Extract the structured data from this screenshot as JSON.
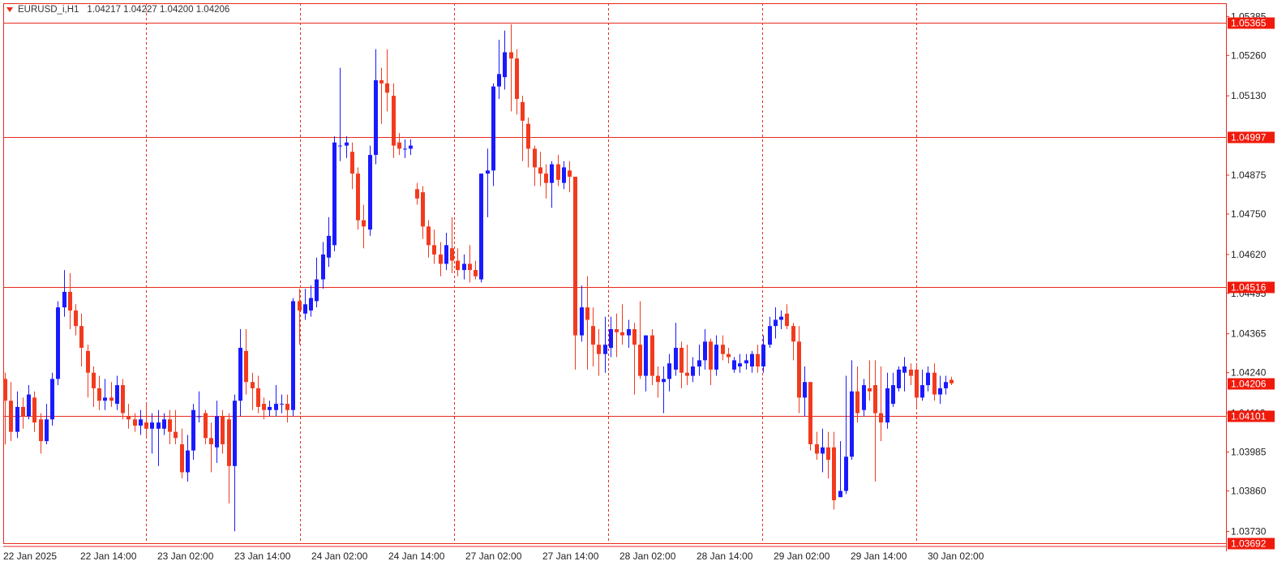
{
  "header": {
    "symbol": "EURUSD_i,H1",
    "ohlc": "1.04217 1.04227 1.04200 1.04206"
  },
  "colors": {
    "bull": "#1a1aff",
    "bear": "#f23a1e",
    "hline": "#e8291c",
    "grid": "#e8291c",
    "axis": "#e8291c",
    "label_bg": "#f01a0c",
    "label_text": "#ffffff",
    "highlight_wick": "#22dd22"
  },
  "chart_data": {
    "type": "candlestick",
    "symbol": "EURUSD_i",
    "timeframe": "H1",
    "ylim": [
      1.03692,
      1.05365
    ],
    "y_ticks": [
      "1.05385",
      "1.05260",
      "1.05130",
      "1.04875",
      "1.04750",
      "1.04620",
      "1.04495",
      "1.04365",
      "1.04240",
      "1.04110",
      "1.03985",
      "1.03860",
      "1.03730"
    ],
    "x_ticks": [
      "22 Jan 2025",
      "22 Jan 14:00",
      "23 Jan 02:00",
      "23 Jan 14:00",
      "24 Jan 02:00",
      "24 Jan 14:00",
      "27 Jan 02:00",
      "27 Jan 14:00",
      "28 Jan 02:00",
      "28 Jan 14:00",
      "29 Jan 02:00",
      "29 Jan 14:00",
      "30 Jan 02:00"
    ],
    "horizontal_lines": [
      {
        "price": 1.05365,
        "label": "1.05365"
      },
      {
        "price": 1.04997,
        "label": "1.04997"
      },
      {
        "price": 1.04516,
        "label": "1.04516"
      },
      {
        "price": 1.04101,
        "label": "1.04101"
      },
      {
        "price": 1.03692,
        "label": "1.03692"
      }
    ],
    "current_price": {
      "price": 1.04206,
      "label": "1.04206"
    },
    "grid": "vertical-dashed",
    "candles": [
      [
        1.0422,
        1.0415,
        1.0424,
        1.0401
      ],
      [
        1.0415,
        1.0405,
        1.0421,
        1.0402
      ],
      [
        1.0405,
        1.0413,
        1.0418,
        1.0403
      ],
      [
        1.0413,
        1.041,
        1.0416,
        1.0406
      ],
      [
        1.041,
        1.0417,
        1.042,
        1.0409
      ],
      [
        1.0416,
        1.0408,
        1.0418,
        1.0405
      ],
      [
        1.0409,
        1.0402,
        1.0411,
        1.0398
      ],
      [
        1.0402,
        1.0409,
        1.0414,
        1.0401
      ],
      [
        1.0409,
        1.0422,
        1.0424,
        1.0407
      ],
      [
        1.0422,
        1.0445,
        1.0447,
        1.042
      ],
      [
        1.0445,
        1.045,
        1.0457,
        1.0442
      ],
      [
        1.045,
        1.0444,
        1.0456,
        1.0438
      ],
      [
        1.0444,
        1.0439,
        1.0446,
        1.0436
      ],
      [
        1.0439,
        1.0432,
        1.0443,
        1.0426
      ],
      [
        1.0431,
        1.0424,
        1.0433,
        1.0416
      ],
      [
        1.0424,
        1.0419,
        1.0426,
        1.0413
      ],
      [
        1.0419,
        1.0415,
        1.0423,
        1.0412
      ],
      [
        1.0415,
        1.0416,
        1.0422,
        1.0412
      ],
      [
        1.0416,
        1.0415,
        1.0421,
        1.0413
      ],
      [
        1.0414,
        1.042,
        1.0423,
        1.0412
      ],
      [
        1.042,
        1.0411,
        1.0422,
        1.0409
      ],
      [
        1.041,
        1.0409,
        1.0414,
        1.0406
      ],
      [
        1.0409,
        1.0407,
        1.0411,
        1.0405
      ],
      [
        1.0407,
        1.0409,
        1.0412,
        1.0404
      ],
      [
        1.0408,
        1.0406,
        1.0414,
        1.0403
      ],
      [
        1.0406,
        1.0408,
        1.0411,
        1.0398
      ],
      [
        1.0406,
        1.0408,
        1.0412,
        1.0394
      ],
      [
        1.0406,
        1.0409,
        1.0411,
        1.0404
      ],
      [
        1.0409,
        1.0405,
        1.0412,
        1.0401
      ],
      [
        1.0405,
        1.0403,
        1.0412,
        1.0401
      ],
      [
        1.0401,
        1.0392,
        1.0406,
        1.039
      ],
      [
        1.0392,
        1.0399,
        1.0404,
        1.0389
      ],
      [
        1.0399,
        1.0412,
        1.0414,
        1.0396
      ],
      [
        1.041,
        1.041,
        1.0418,
        1.0408
      ],
      [
        1.0411,
        1.0403,
        1.0412,
        1.0401
      ],
      [
        1.0403,
        1.0401,
        1.0408,
        1.0392
      ],
      [
        1.04,
        1.041,
        1.0415,
        1.0395
      ],
      [
        1.041,
        1.0401,
        1.0412,
        1.0398
      ],
      [
        1.0409,
        1.0394,
        1.0411,
        1.0382
      ],
      [
        1.0394,
        1.0415,
        1.0417,
        1.0373
      ],
      [
        1.0415,
        1.0432,
        1.0438,
        1.041
      ],
      [
        1.0431,
        1.0421,
        1.0438,
        1.0417
      ],
      [
        1.0421,
        1.0419,
        1.0424,
        1.0412
      ],
      [
        1.0419,
        1.0413,
        1.0423,
        1.0411
      ],
      [
        1.0414,
        1.0412,
        1.0416,
        1.0409
      ],
      [
        1.0412,
        1.0413,
        1.0415,
        1.041
      ],
      [
        1.0412,
        1.0414,
        1.042,
        1.041
      ],
      [
        1.0414,
        1.0414,
        1.0417,
        1.0411
      ],
      [
        1.0414,
        1.0412,
        1.0417,
        1.0408
      ],
      [
        1.0412,
        1.0447,
        1.0448,
        1.041
      ],
      [
        1.0447,
        1.0444,
        1.0451,
        1.0433
      ],
      [
        1.0443,
        1.0446,
        1.0451,
        1.0441
      ],
      [
        1.0444,
        1.0448,
        1.0452,
        1.0442
      ],
      [
        1.0447,
        1.0454,
        1.0461,
        1.0445
      ],
      [
        1.0454,
        1.0462,
        1.0466,
        1.0451
      ],
      [
        1.0461,
        1.0468,
        1.0474,
        1.0458
      ],
      [
        1.0465,
        1.0498,
        1.05,
        1.0463
      ],
      [
        1.0497,
        1.0497,
        1.0522,
        1.0492
      ],
      [
        1.0497,
        1.0498,
        1.05,
        1.0493
      ],
      [
        1.0495,
        1.0488,
        1.0498,
        1.0483
      ],
      [
        1.0488,
        1.0473,
        1.049,
        1.047
      ],
      [
        1.0473,
        1.0471,
        1.0478,
        1.0464
      ],
      [
        1.047,
        1.0494,
        1.0497,
        1.0468
      ],
      [
        1.0494,
        1.0518,
        1.0528,
        1.0491
      ],
      [
        1.0518,
        1.0517,
        1.0522,
        1.0504
      ],
      [
        1.0517,
        1.0514,
        1.0528,
        1.0508
      ],
      [
        1.0513,
        1.0497,
        1.0517,
        1.0493
      ],
      [
        1.0498,
        1.0496,
        1.0501,
        1.0494
      ],
      [
        1.0496,
        1.0496,
        1.0499,
        1.0493
      ],
      [
        1.0496,
        1.0497,
        1.0499,
        1.0494
      ],
      [
        1.0483,
        1.048,
        1.0485,
        1.0478
      ],
      [
        1.0482,
        1.0471,
        1.0484,
        1.0467
      ],
      [
        1.0471,
        1.0465,
        1.0473,
        1.0461
      ],
      [
        1.0465,
        1.0462,
        1.047,
        1.0459
      ],
      [
        1.0462,
        1.0459,
        1.0466,
        1.0455
      ],
      [
        1.0459,
        1.0465,
        1.0469,
        1.0457
      ],
      [
        1.0464,
        1.046,
        1.0474,
        1.0456
      ],
      [
        1.046,
        1.0457,
        1.0464,
        1.0455
      ],
      [
        1.0457,
        1.0459,
        1.0462,
        1.0454
      ],
      [
        1.0459,
        1.0457,
        1.0465,
        1.0453
      ],
      [
        1.0457,
        1.0455,
        1.046,
        1.0454
      ],
      [
        1.0454,
        1.0488,
        1.0488,
        1.0453
      ],
      [
        1.0488,
        1.0489,
        1.0496,
        1.0474
      ],
      [
        1.0489,
        1.0516,
        1.0517,
        1.0484
      ],
      [
        1.0516,
        1.052,
        1.0531,
        1.0512
      ],
      [
        1.0519,
        1.0527,
        1.0534,
        1.0515
      ],
      [
        1.0527,
        1.0525,
        1.0536,
        1.0508
      ],
      [
        1.0525,
        1.0512,
        1.0528,
        1.0507
      ],
      [
        1.0511,
        1.0505,
        1.0513,
        1.0492
      ],
      [
        1.0504,
        1.0496,
        1.0506,
        1.049
      ],
      [
        1.0496,
        1.049,
        1.0497,
        1.0484
      ],
      [
        1.049,
        1.0488,
        1.0495,
        1.0484
      ],
      [
        1.0488,
        1.0485,
        1.0491,
        1.048
      ],
      [
        1.0485,
        1.0491,
        1.0492,
        1.0477
      ],
      [
        1.0491,
        1.0486,
        1.0494,
        1.0484
      ],
      [
        1.0485,
        1.049,
        1.0492,
        1.0483
      ],
      [
        1.0489,
        1.0487,
        1.0492,
        1.0482
      ],
      [
        1.0487,
        1.0436,
        1.0487,
        1.0425
      ],
      [
        1.0436,
        1.0445,
        1.0452,
        1.0434
      ],
      [
        1.0445,
        1.0441,
        1.0455,
        1.0425
      ],
      [
        1.0439,
        1.0433,
        1.0445,
        1.0426
      ],
      [
        1.0433,
        1.043,
        1.0438,
        1.0423
      ],
      [
        1.043,
        1.0433,
        1.0442,
        1.0424
      ],
      [
        1.0432,
        1.0438,
        1.0442,
        1.0429
      ],
      [
        1.0438,
        1.0437,
        1.0443,
        1.0429
      ],
      [
        1.0437,
        1.0436,
        1.0446,
        1.0433
      ],
      [
        1.0436,
        1.0438,
        1.0441,
        1.0432
      ],
      [
        1.0438,
        1.0433,
        1.044,
        1.0417
      ],
      [
        1.0433,
        1.0423,
        1.0447,
        1.0422
      ],
      [
        1.0423,
        1.0436,
        1.0436,
        1.0418
      ],
      [
        1.0436,
        1.0423,
        1.0438,
        1.042
      ],
      [
        1.0423,
        1.0421,
        1.0426,
        1.0416
      ],
      [
        1.0421,
        1.0422,
        1.0426,
        1.0411
      ],
      [
        1.0422,
        1.0427,
        1.043,
        1.0418
      ],
      [
        1.0425,
        1.0432,
        1.044,
        1.0423
      ],
      [
        1.0432,
        1.0424,
        1.0434,
        1.0419
      ],
      [
        1.0424,
        1.0423,
        1.0433,
        1.042
      ],
      [
        1.0423,
        1.0426,
        1.0429,
        1.0421
      ],
      [
        1.0426,
        1.0428,
        1.0433,
        1.0423
      ],
      [
        1.0428,
        1.0434,
        1.0438,
        1.0425
      ],
      [
        1.0434,
        1.0425,
        1.0435,
        1.042
      ],
      [
        1.0425,
        1.0433,
        1.0436,
        1.0423
      ],
      [
        1.0433,
        1.043,
        1.0436,
        1.0428
      ],
      [
        1.043,
        1.0429,
        1.0432,
        1.0427
      ],
      [
        1.0425,
        1.0428,
        1.0429,
        1.0424
      ],
      [
        1.0426,
        1.0427,
        1.043,
        1.0424
      ],
      [
        1.0427,
        1.0428,
        1.043,
        1.0425
      ],
      [
        1.0426,
        1.043,
        1.0431,
        1.0424
      ],
      [
        1.043,
        1.0426,
        1.0433,
        1.0424
      ],
      [
        1.0426,
        1.0433,
        1.0436,
        1.0424
      ],
      [
        1.0433,
        1.0439,
        1.0442,
        1.0432
      ],
      [
        1.0439,
        1.0441,
        1.0445,
        1.0435
      ],
      [
        1.0441,
        1.0442,
        1.0444,
        1.0438
      ],
      [
        1.0443,
        1.0439,
        1.0446,
        1.0438
      ],
      [
        1.0439,
        1.0434,
        1.044,
        1.0428
      ],
      [
        1.0434,
        1.0416,
        1.0439,
        1.0411
      ],
      [
        1.0416,
        1.0421,
        1.0426,
        1.041
      ],
      [
        1.0421,
        1.0401,
        1.0421,
        1.0399
      ],
      [
        1.0401,
        1.0398,
        1.0405,
        1.0396
      ],
      [
        1.0398,
        1.04,
        1.0406,
        1.0392
      ],
      [
        1.04,
        1.0396,
        1.0405,
        1.039
      ],
      [
        1.04,
        1.0383,
        1.0405,
        1.038
      ],
      [
        1.0384,
        1.0386,
        1.0402,
        1.0384
      ],
      [
        1.0386,
        1.0397,
        1.0423,
        1.0385
      ],
      [
        1.0397,
        1.0418,
        1.0428,
        1.0396
      ],
      [
        1.0418,
        1.0411,
        1.0426,
        1.0408
      ],
      [
        1.0412,
        1.042,
        1.0422,
        1.041
      ],
      [
        1.0419,
        1.0418,
        1.0428,
        1.0415
      ],
      [
        1.042,
        1.0411,
        1.0428,
        1.0389
      ],
      [
        1.0411,
        1.0408,
        1.0426,
        1.0402
      ],
      [
        1.0408,
        1.0419,
        1.0424,
        1.0406
      ],
      [
        1.0414,
        1.042,
        1.0424,
        1.0413
      ],
      [
        1.0419,
        1.0425,
        1.0426,
        1.0418
      ],
      [
        1.0424,
        1.0426,
        1.0429,
        1.0418
      ],
      [
        1.0425,
        1.0423,
        1.0427,
        1.042
      ],
      [
        1.0425,
        1.0416,
        1.0427,
        1.0413
      ],
      [
        1.0416,
        1.042,
        1.0425,
        1.0415
      ],
      [
        1.042,
        1.0424,
        1.0426,
        1.0418
      ],
      [
        1.0424,
        1.0417,
        1.0427,
        1.0415
      ],
      [
        1.0417,
        1.0419,
        1.0423,
        1.0414
      ],
      [
        1.0419,
        1.0421,
        1.0423,
        1.0417
      ],
      [
        1.04217,
        1.04206,
        1.04227,
        1.042
      ]
    ]
  }
}
